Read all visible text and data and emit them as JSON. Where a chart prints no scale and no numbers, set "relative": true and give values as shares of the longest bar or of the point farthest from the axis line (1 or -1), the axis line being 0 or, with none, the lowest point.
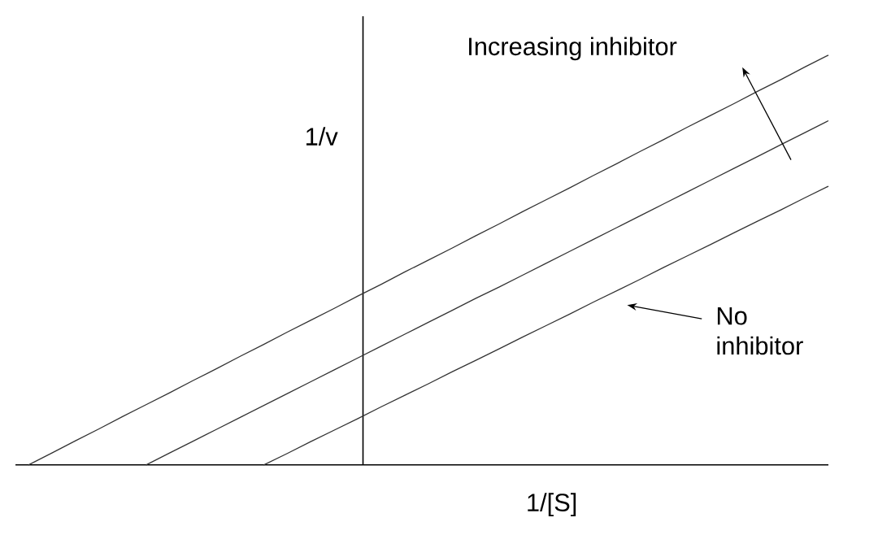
{
  "chart_data": {
    "type": "line",
    "relative": true,
    "xlabel": "1/[S]",
    "ylabel": "1/v",
    "categories": [
      null,
      null,
      null,
      null,
      null,
      null,
      null,
      null,
      null,
      null,
      null,
      null,
      null,
      null,
      null,
      null,
      null,
      null,
      null,
      null,
      null,
      null,
      null,
      null,
      null,
      null,
      null,
      null,
      null,
      null,
      null,
      null,
      null,
      null,
      null
    ],
    "series": [
      {
        "color": "#333333",
        "values": [
          0,
          0.029,
          0.059,
          0.088,
          0.118,
          0.147,
          0.176,
          0.206,
          0.235,
          0.265,
          0.294,
          0.324,
          0.353,
          0.382,
          0.412,
          0.441,
          0.471,
          0.5,
          0.529,
          0.559,
          0.588,
          0.618,
          0.647,
          0.676,
          0.706,
          0.735,
          0.765,
          0.794,
          0.824,
          0.853,
          0.882,
          0.912,
          0.941,
          0.971,
          1.0
        ]
      },
      {
        "color": "#333333",
        "values": [
          null,
          null,
          null,
          null,
          null,
          0,
          0.029,
          0.058,
          0.087,
          0.116,
          0.145,
          0.174,
          0.203,
          0.232,
          0.261,
          0.29,
          0.319,
          0.348,
          0.377,
          0.406,
          0.434,
          0.463,
          0.492,
          0.521,
          0.55,
          0.579,
          0.608,
          0.637,
          0.666,
          0.695,
          0.724,
          0.753,
          0.782,
          0.811,
          0.84
        ]
      },
      {
        "color": "#333333",
        "values": [
          null,
          null,
          null,
          null,
          null,
          null,
          null,
          null,
          null,
          null,
          0,
          0.028,
          0.057,
          0.085,
          0.113,
          0.142,
          0.17,
          0.198,
          0.227,
          0.255,
          0.283,
          0.312,
          0.34,
          0.368,
          0.397,
          0.425,
          0.453,
          0.482,
          0.51,
          0.538,
          0.567,
          0.595,
          0.623,
          0.652,
          0.68
        ]
      }
    ],
    "annotations": [
      "Increasing inhibitor",
      "No\ninhibitor"
    ]
  }
}
